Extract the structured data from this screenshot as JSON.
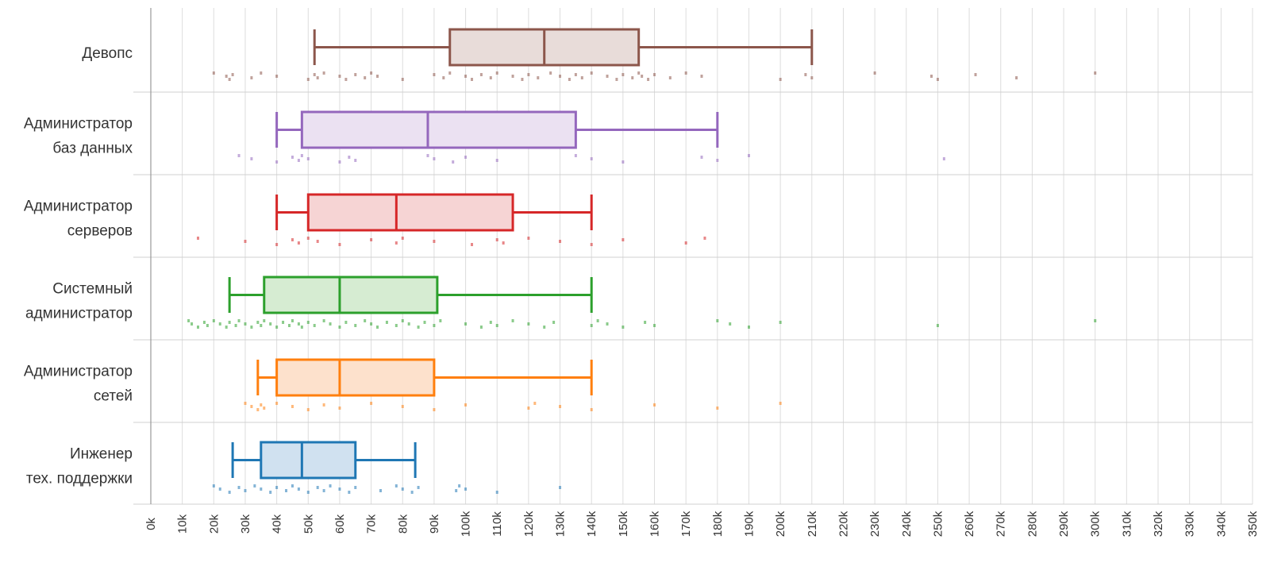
{
  "chart_data": {
    "type": "boxplot",
    "orientation": "horizontal",
    "title": "",
    "xlabel": "",
    "ylabel": "",
    "xlim": [
      0,
      350000
    ],
    "x_ticks": [
      "0k",
      "10k",
      "20k",
      "30k",
      "40k",
      "50k",
      "60k",
      "70k",
      "80k",
      "90k",
      "100k",
      "110k",
      "120k",
      "130k",
      "140k",
      "150k",
      "160k",
      "170k",
      "180k",
      "190k",
      "200k",
      "210k",
      "220k",
      "230k",
      "240k",
      "250k",
      "260k",
      "270k",
      "280k",
      "290k",
      "300k",
      "310k",
      "320k",
      "330k",
      "340k",
      "350k"
    ],
    "x_tick_values": [
      0,
      10000,
      20000,
      30000,
      40000,
      50000,
      60000,
      70000,
      80000,
      90000,
      100000,
      110000,
      120000,
      130000,
      140000,
      150000,
      160000,
      170000,
      180000,
      190000,
      200000,
      210000,
      220000,
      230000,
      240000,
      250000,
      260000,
      270000,
      280000,
      290000,
      300000,
      310000,
      320000,
      330000,
      340000,
      350000
    ],
    "grid": true,
    "series": [
      {
        "id": "devops",
        "label_lines": [
          "Девопс"
        ],
        "color": "#8c564b",
        "fill": "#e8dcd9",
        "whisker_low": 52000,
        "q1": 95000,
        "median": 125000,
        "q3": 155000,
        "whisker_high": 210000,
        "points": [
          20000,
          24000,
          25000,
          26000,
          32000,
          35000,
          40000,
          50000,
          52000,
          53000,
          55000,
          60000,
          62000,
          65000,
          68000,
          70000,
          72000,
          80000,
          90000,
          93000,
          95000,
          100000,
          102000,
          105000,
          108000,
          110000,
          115000,
          118000,
          120000,
          123000,
          127000,
          130000,
          133000,
          135000,
          137000,
          140000,
          145000,
          148000,
          150000,
          153000,
          155000,
          156000,
          158000,
          160000,
          165000,
          170000,
          175000,
          200000,
          208000,
          210000,
          230000,
          248000,
          250000,
          262000,
          275000,
          300000
        ]
      },
      {
        "id": "dba",
        "label_lines": [
          "Администратор",
          "баз данных"
        ],
        "color": "#9467bd",
        "fill": "#ebe1f2",
        "whisker_low": 40000,
        "q1": 48000,
        "median": 88000,
        "q3": 135000,
        "whisker_high": 180000,
        "points": [
          28000,
          32000,
          40000,
          45000,
          47000,
          48000,
          50000,
          60000,
          63000,
          65000,
          88000,
          90000,
          96000,
          100000,
          110000,
          135000,
          140000,
          150000,
          175000,
          180000,
          190000,
          252000
        ]
      },
      {
        "id": "server-admin",
        "label_lines": [
          "Администратор",
          "серверов"
        ],
        "color": "#d62728",
        "fill": "#f6d4d4",
        "whisker_low": 40000,
        "q1": 50000,
        "median": 78000,
        "q3": 115000,
        "whisker_high": 140000,
        "points": [
          15000,
          30000,
          40000,
          45000,
          47000,
          50000,
          53000,
          60000,
          70000,
          78000,
          80000,
          90000,
          102000,
          110000,
          112000,
          120000,
          130000,
          140000,
          150000,
          170000,
          176000
        ]
      },
      {
        "id": "sysadmin",
        "label_lines": [
          "Системный",
          "администратор"
        ],
        "color": "#2ca02c",
        "fill": "#d6ecd2",
        "whisker_low": 25000,
        "q1": 36000,
        "median": 60000,
        "q3": 91000,
        "whisker_high": 140000,
        "points": [
          12000,
          13000,
          15000,
          17000,
          18000,
          20000,
          22000,
          24000,
          25000,
          27000,
          28000,
          30000,
          32000,
          34000,
          35000,
          36000,
          38000,
          40000,
          42000,
          44000,
          45000,
          47000,
          48000,
          50000,
          52000,
          55000,
          57000,
          60000,
          62000,
          65000,
          68000,
          70000,
          72000,
          75000,
          78000,
          80000,
          82000,
          85000,
          87000,
          90000,
          92000,
          100000,
          105000,
          108000,
          110000,
          115000,
          120000,
          125000,
          128000,
          140000,
          142000,
          145000,
          150000,
          157000,
          160000,
          180000,
          184000,
          190000,
          200000,
          250000,
          300000
        ]
      },
      {
        "id": "net-admin",
        "label_lines": [
          "Администратор",
          "сетей"
        ],
        "color": "#ff7f0e",
        "fill": "#fde1cc",
        "whisker_low": 34000,
        "q1": 40000,
        "median": 60000,
        "q3": 90000,
        "whisker_high": 140000,
        "points": [
          30000,
          32000,
          34000,
          35000,
          36000,
          40000,
          45000,
          50000,
          55000,
          60000,
          70000,
          80000,
          90000,
          100000,
          120000,
          122000,
          130000,
          140000,
          160000,
          180000,
          200000
        ]
      },
      {
        "id": "support-engineer",
        "label_lines": [
          "Инженер",
          "тех. поддержки"
        ],
        "color": "#1f77b4",
        "fill": "#d0e1f0",
        "whisker_low": 26000,
        "q1": 35000,
        "median": 48000,
        "q3": 65000,
        "whisker_high": 84000,
        "points": [
          20000,
          22000,
          25000,
          28000,
          30000,
          33000,
          35000,
          38000,
          40000,
          43000,
          45000,
          47000,
          50000,
          53000,
          55000,
          57000,
          60000,
          63000,
          65000,
          73000,
          78000,
          80000,
          83000,
          85000,
          97000,
          98000,
          100000,
          110000,
          130000
        ]
      }
    ]
  }
}
